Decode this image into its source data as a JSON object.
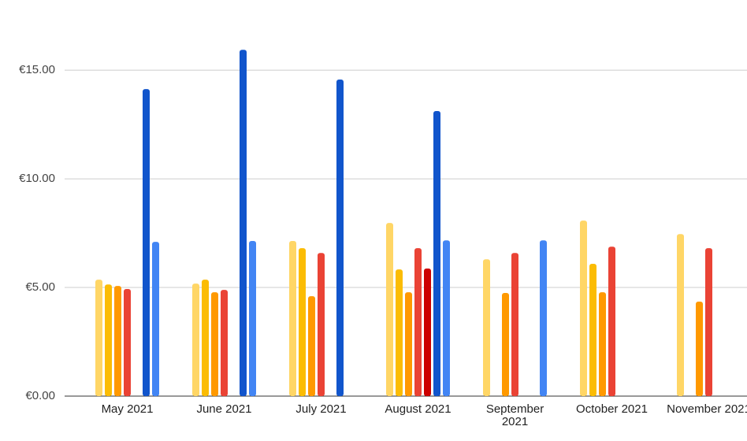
{
  "chart_data": {
    "type": "bar",
    "categories": [
      "May 2021",
      "June 2021",
      "July 2021",
      "August 2021",
      "September 2021",
      "October 2021",
      "November 2021"
    ],
    "series": [
      {
        "color": "#ffd666",
        "values": [
          5.36,
          5.18,
          7.14,
          7.97,
          6.3,
          8.08,
          7.46
        ]
      },
      {
        "color": "#fbbc04",
        "values": [
          5.14,
          5.36,
          6.81,
          5.83,
          null,
          6.09,
          null
        ]
      },
      {
        "color": "#ff9900",
        "values": [
          5.07,
          4.78,
          4.6,
          4.78,
          4.75,
          4.78,
          4.35
        ]
      },
      {
        "color": "#ea4335",
        "values": [
          4.93,
          4.89,
          6.59,
          6.81,
          6.59,
          6.88,
          6.81
        ]
      },
      {
        "color": "#cc0000",
        "values": [
          null,
          null,
          null,
          5.87,
          null,
          null,
          null
        ]
      },
      {
        "color": "#1155cc",
        "values": [
          14.13,
          15.94,
          14.57,
          13.12,
          null,
          null,
          null
        ]
      },
      {
        "color": "#4285f4",
        "values": [
          7.1,
          7.14,
          null,
          7.17,
          7.17,
          null,
          null
        ]
      }
    ],
    "ylim": [
      0,
      17
    ],
    "yticks": [
      {
        "value": 0,
        "label": "€0.00"
      },
      {
        "value": 5,
        "label": "€5.00"
      },
      {
        "value": 10,
        "label": "€10.00"
      },
      {
        "value": 15,
        "label": "€15.00"
      }
    ],
    "grid": true
  }
}
